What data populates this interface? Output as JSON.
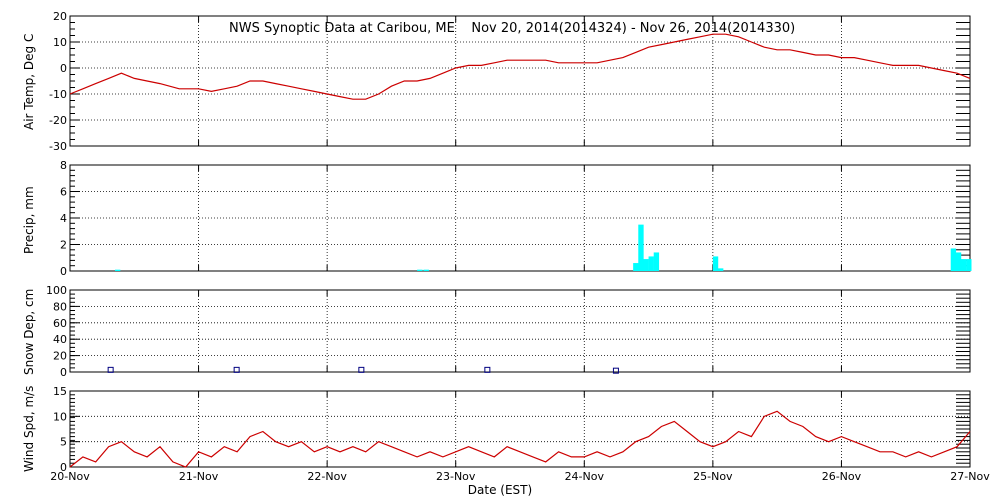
{
  "chart_data": [
    {
      "type": "line",
      "title": "NWS Synoptic Data at Caribou, ME    Nov 20, 2014(2014324) - Nov 26, 2014(2014330)",
      "xlabel": "Date (EST)",
      "ylabel": "Air Temp, Deg C",
      "ylim": [
        -30,
        20
      ],
      "yticks": [
        "20",
        "10",
        "0",
        "-10",
        "-20",
        "-30"
      ],
      "xlim": [
        0,
        7
      ],
      "grid": true,
      "color": "#cc0000",
      "series": [
        {
          "x": [
            0.0,
            0.1,
            0.2,
            0.3,
            0.4,
            0.5,
            0.6,
            0.7,
            0.85,
            1.0,
            1.1,
            1.2,
            1.3,
            1.4,
            1.5,
            1.6,
            1.7,
            1.8,
            1.9,
            2.0,
            2.1,
            2.2,
            2.3,
            2.4,
            2.5,
            2.6,
            2.7,
            2.8,
            2.9,
            3.0,
            3.1,
            3.2,
            3.3,
            3.4,
            3.5,
            3.6,
            3.7,
            3.8,
            3.9,
            4.0,
            4.1,
            4.2,
            4.3,
            4.4,
            4.5,
            4.6,
            4.7,
            4.8,
            4.9,
            5.0,
            5.1,
            5.2,
            5.3,
            5.4,
            5.5,
            5.6,
            5.7,
            5.8,
            5.9,
            6.0,
            6.1,
            6.2,
            6.3,
            6.4,
            6.5,
            6.6,
            6.7,
            6.8,
            6.9,
            7.0
          ],
          "values": [
            -10,
            -8,
            -6,
            -4,
            -2,
            -4,
            -5,
            -6,
            -8,
            -8,
            -9,
            -8,
            -7,
            -5,
            -5,
            -6,
            -7,
            -8,
            -9,
            -10,
            -11,
            -12,
            -12,
            -10,
            -7,
            -5,
            -5,
            -4,
            -2,
            0,
            1,
            1,
            2,
            3,
            3,
            3,
            3,
            2,
            2,
            2,
            2,
            3,
            4,
            6,
            8,
            9,
            10,
            11,
            12,
            13,
            13,
            12,
            10,
            8,
            7,
            7,
            6,
            5,
            5,
            4,
            4,
            3,
            2,
            1,
            1,
            1,
            0,
            -1,
            -2,
            -4
          ]
        }
      ]
    },
    {
      "type": "bar",
      "ylabel": "Precip, mm",
      "ylim": [
        0,
        8
      ],
      "yticks": [
        "8",
        "6",
        "4",
        "2",
        "0"
      ],
      "xlim": [
        0,
        7
      ],
      "grid": true,
      "color": "#00ffff",
      "bar_width_days": 0.04167,
      "series": [
        {
          "x": [
            0.35,
            2.7,
            2.75,
            4.38,
            4.42,
            4.46,
            4.5,
            4.54,
            5.0,
            5.04,
            6.85,
            6.89,
            6.93,
            6.97
          ],
          "values": [
            0.1,
            0.1,
            0.1,
            0.6,
            3.5,
            0.9,
            1.1,
            1.4,
            1.1,
            0.2,
            1.7,
            1.4,
            0.9,
            0.9
          ]
        }
      ]
    },
    {
      "type": "scatter",
      "ylabel": "Snow Dep, cm",
      "ylim": [
        0,
        100
      ],
      "yticks": [
        "100",
        "80",
        "60",
        "40",
        "20",
        "0"
      ],
      "xlim": [
        0,
        7
      ],
      "grid": true,
      "color": "#000080",
      "series": [
        {
          "x": [
            0.32,
            1.3,
            2.27,
            3.25,
            4.25
          ],
          "values": [
            2,
            2,
            2,
            2,
            1
          ]
        }
      ]
    },
    {
      "type": "line",
      "ylabel": "Wind Spd, m/s",
      "ylim": [
        0,
        15
      ],
      "yticks": [
        "15",
        "10",
        "5",
        "0"
      ],
      "xlim": [
        0,
        7
      ],
      "xticks": [
        "20-Nov",
        "21-Nov",
        "22-Nov",
        "23-Nov",
        "24-Nov",
        "25-Nov",
        "26-Nov",
        "27-Nov"
      ],
      "grid": true,
      "color": "#cc0000",
      "series": [
        {
          "x": [
            0.0,
            0.1,
            0.2,
            0.3,
            0.4,
            0.5,
            0.6,
            0.7,
            0.8,
            0.9,
            1.0,
            1.1,
            1.2,
            1.3,
            1.4,
            1.5,
            1.6,
            1.7,
            1.8,
            1.9,
            2.0,
            2.1,
            2.2,
            2.3,
            2.4,
            2.5,
            2.6,
            2.7,
            2.8,
            2.9,
            3.0,
            3.1,
            3.2,
            3.3,
            3.4,
            3.5,
            3.6,
            3.7,
            3.8,
            3.9,
            4.0,
            4.1,
            4.2,
            4.3,
            4.4,
            4.5,
            4.6,
            4.7,
            4.8,
            4.9,
            5.0,
            5.1,
            5.2,
            5.3,
            5.4,
            5.5,
            5.6,
            5.7,
            5.8,
            5.9,
            6.0,
            6.1,
            6.2,
            6.3,
            6.4,
            6.5,
            6.6,
            6.7,
            6.8,
            6.9,
            7.0
          ],
          "values": [
            0,
            2,
            1,
            4,
            5,
            3,
            2,
            4,
            1,
            0,
            3,
            2,
            4,
            3,
            6,
            7,
            5,
            4,
            5,
            3,
            4,
            3,
            4,
            3,
            5,
            4,
            3,
            2,
            3,
            2,
            3,
            4,
            3,
            2,
            4,
            3,
            2,
            1,
            3,
            2,
            2,
            3,
            2,
            3,
            5,
            6,
            8,
            9,
            7,
            5,
            4,
            5,
            7,
            6,
            10,
            11,
            9,
            8,
            6,
            5,
            6,
            5,
            4,
            3,
            3,
            2,
            3,
            2,
            3,
            4,
            7
          ]
        }
      ]
    }
  ]
}
